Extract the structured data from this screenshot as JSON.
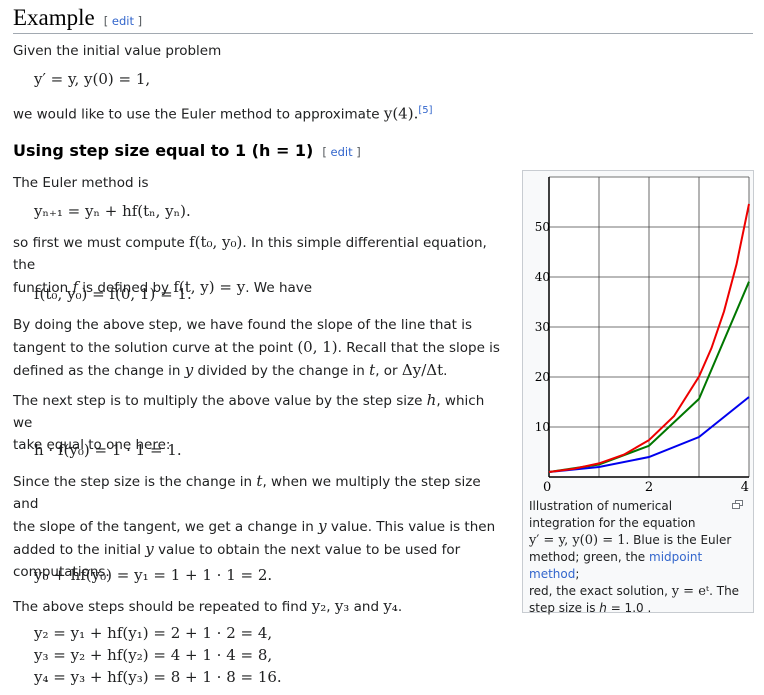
{
  "heading": {
    "title": "Example",
    "edit_open": "[ ",
    "edit_label": "edit",
    "edit_close": " ]"
  },
  "intro": {
    "line1": "Given the initial value problem",
    "ivp": "y′ = y,   y(0) = 1,",
    "line2_pre": "we would like to use the Euler method to approximate ",
    "line2_math": "y(4).",
    "ref": "[5]"
  },
  "subheading": {
    "title": "Using step size equal to 1 (h = 1)",
    "edit_label": "edit"
  },
  "body": {
    "p1": "The Euler method is",
    "eq1": "yₙ₊₁ = yₙ + hf(tₙ, yₙ).",
    "p2a": "so first we must compute ",
    "p2a_math": "f(t₀, y₀)",
    "p2a_post": ". In this simple differential equation, the",
    "p2b_pre": "function ",
    "p2b_math1": "f",
    "p2b_mid": " is defined by ",
    "p2b_math2": "f(t, y) = y",
    "p2b_post": ". We have",
    "eq2": "f(t₀, y₀) = f(0, 1) = 1.",
    "p3a": "By doing the above step, we have found the slope of the line that is",
    "p3b_pre": "tangent to the solution curve at the point ",
    "p3b_math": "(0, 1)",
    "p3b_post": ". Recall that the slope is",
    "p3c_pre": "defined as the change in ",
    "p3c_m1": "y",
    "p3c_mid": " divided by the change in ",
    "p3c_m2": "t",
    "p3c_or": ", or ",
    "p3c_m3": "Δy/Δt",
    "p3c_end": ".",
    "p4a_pre": "The next step is to multiply the above value by the step size ",
    "p4a_math": "h",
    "p4a_post": ", which we",
    "p4b": "take equal to one here:",
    "eq3": "h · f(y₀) = 1 · 1 = 1.",
    "p5a_pre": "Since the step size is the change in ",
    "p5a_math": "t",
    "p5a_post": ", when we multiply the step size and",
    "p5b_pre": "the slope of the tangent, we get a change in ",
    "p5b_math": "y",
    "p5b_post": " value. This value is then",
    "p5c_pre": "added to the initial ",
    "p5c_math": "y",
    "p5c_post": " value to obtain the next value to be used for",
    "p5d": "computations.",
    "eq4": "y₀ + hf(y₀) = y₁ = 1 + 1 · 1 = 2.",
    "p6_pre": "The above steps should be repeated to find ",
    "p6_m1": "y₂",
    "p6_sep1": ", ",
    "p6_m2": "y₃",
    "p6_and": " and ",
    "p6_m3": "y₄",
    "p6_end": ".",
    "eq5": "y₂ = y₁ + hf(y₁) = 2 + 1 · 2 = 4,",
    "eq6": "y₃ = y₂ + hf(y₂) = 4 + 1 · 4 = 8,",
    "eq7": "y₄ = y₃ + hf(y₃) = 8 + 1 · 8 = 16."
  },
  "figure": {
    "caption_a": "Illustration of numerical",
    "caption_b": "integration for the equation",
    "caption_c_math": "y′ = y, y(0) = 1",
    "caption_c_post": ". Blue is the Euler",
    "caption_d_pre": "method; green, the ",
    "caption_d_link": "midpoint method",
    "caption_d_post": ";",
    "caption_e_pre": "red, the exact solution, ",
    "caption_e_math": "y = eᵗ",
    "caption_e_post": ". The",
    "caption_f_pre": "step size is ",
    "caption_f_h": "h",
    "caption_f_post": " = 1.0 .",
    "enlarge_icon": "enlarge-icon"
  },
  "chart_data": {
    "type": "line",
    "xlim": [
      0,
      4
    ],
    "ylim": [
      0,
      60
    ],
    "x_ticks": [
      0,
      2,
      4
    ],
    "y_ticks": [
      10,
      20,
      30,
      40,
      50
    ],
    "grid": true,
    "series": [
      {
        "color": "#0000ee",
        "x": [
          0,
          1,
          2,
          3,
          4
        ],
        "y": [
          1,
          2,
          4,
          8,
          16
        ]
      },
      {
        "color": "#007700",
        "x": [
          0,
          1,
          2,
          3,
          4
        ],
        "y": [
          1,
          2.5,
          6.25,
          15.625,
          39.0625
        ]
      },
      {
        "color": "#ee0000",
        "x": [
          0,
          0.5,
          1,
          1.5,
          2,
          2.5,
          3,
          3.25,
          3.5,
          3.75,
          4
        ],
        "y": [
          1,
          1.649,
          2.718,
          4.482,
          7.389,
          12.18,
          20.09,
          25.79,
          33.12,
          42.52,
          54.6
        ]
      }
    ]
  }
}
